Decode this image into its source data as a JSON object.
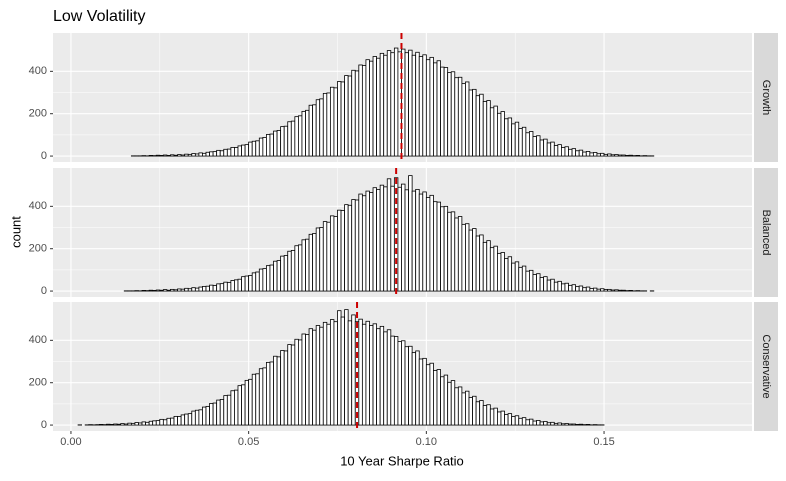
{
  "chart_data": {
    "type": "histogram",
    "title": "Low Volatility",
    "x_label": "10 Year Sharpe Ratio",
    "y_label": "count",
    "bins": [
      0.002,
      0.003,
      0.004,
      0.005,
      0.006,
      0.007,
      0.008,
      0.009,
      0.01,
      0.011,
      0.012,
      0.013,
      0.014,
      0.015,
      0.016,
      0.017,
      0.018,
      0.019,
      0.02,
      0.021,
      0.022,
      0.023,
      0.024,
      0.025,
      0.026,
      0.027,
      0.028,
      0.029,
      0.03,
      0.031,
      0.032,
      0.033,
      0.034,
      0.035,
      0.036,
      0.037,
      0.038,
      0.039,
      0.04,
      0.041,
      0.042,
      0.043,
      0.044,
      0.045,
      0.046,
      0.047,
      0.048,
      0.049,
      0.05,
      0.051,
      0.052,
      0.053,
      0.054,
      0.055,
      0.056,
      0.057,
      0.058,
      0.059,
      0.06,
      0.061,
      0.062,
      0.063,
      0.064,
      0.065,
      0.066,
      0.067,
      0.068,
      0.069,
      0.07,
      0.071,
      0.072,
      0.073,
      0.074,
      0.075,
      0.076,
      0.077,
      0.078,
      0.079,
      0.08,
      0.081,
      0.082,
      0.083,
      0.084,
      0.085,
      0.086,
      0.087,
      0.088,
      0.089,
      0.09,
      0.091,
      0.092,
      0.093,
      0.094,
      0.095,
      0.096,
      0.097,
      0.098,
      0.099,
      0.1,
      0.101,
      0.102,
      0.103,
      0.104,
      0.105,
      0.106,
      0.107,
      0.108,
      0.109,
      0.11,
      0.111,
      0.112,
      0.113,
      0.114,
      0.115,
      0.116,
      0.117,
      0.118,
      0.119,
      0.12,
      0.121,
      0.122,
      0.123,
      0.124,
      0.125,
      0.126,
      0.127,
      0.128,
      0.129,
      0.13,
      0.131,
      0.132,
      0.133,
      0.134,
      0.135,
      0.136,
      0.137,
      0.138,
      0.139,
      0.14,
      0.141,
      0.142,
      0.143,
      0.144,
      0.145,
      0.146,
      0.147,
      0.148,
      0.149,
      0.15,
      0.151,
      0.152,
      0.153,
      0.154,
      0.155,
      0.156,
      0.157,
      0.158,
      0.159,
      0.16,
      0.161,
      0.162,
      0.163,
      0.164,
      0.165,
      0.166,
      0.167,
      0.168,
      0.169,
      0.17,
      0.171,
      0.172,
      0.173,
      0.174,
      0.175,
      0.176,
      0.177,
      0.178,
      0.179,
      0.18,
      0.181,
      0.182,
      0.183
    ],
    "series": [
      {
        "name": "Growth",
        "color": "#ffffff",
        "mean": 0.093,
        "values": [
          0,
          0,
          0,
          0,
          0,
          0,
          0,
          0,
          0,
          0,
          0,
          0,
          0,
          0,
          0,
          1,
          1,
          1,
          2,
          1,
          3,
          2,
          4,
          3,
          5,
          3,
          6,
          4,
          7,
          5,
          9,
          8,
          12,
          10,
          15,
          13,
          18,
          20,
          21,
          27,
          25,
          32,
          33,
          41,
          40,
          48,
          52,
          54,
          66,
          70,
          72,
          85,
          88,
          102,
          104,
          118,
          121,
          139,
          141,
          162,
          165,
          186,
          190,
          211,
          216,
          240,
          242,
          266,
          270,
          296,
          298,
          325,
          322,
          352,
          350,
          380,
          378,
          405,
          402,
          430,
          428,
          455,
          448,
          470,
          462,
          485,
          476,
          498,
          488,
          510,
          492,
          505,
          488,
          500,
          476,
          490,
          470,
          478,
          455,
          466,
          440,
          450,
          420,
          418,
          395,
          398,
          370,
          372,
          342,
          350,
          312,
          315,
          285,
          292,
          258,
          262,
          228,
          236,
          202,
          210,
          176,
          180,
          152,
          160,
          130,
          136,
          110,
          116,
          92,
          96,
          76,
          80,
          62,
          66,
          50,
          54,
          40,
          44,
          32,
          35,
          25,
          28,
          19,
          22,
          15,
          17,
          11,
          13,
          8,
          10,
          6,
          7,
          5,
          5,
          3,
          4,
          2,
          3,
          1,
          2,
          1,
          1,
          0,
          0,
          0,
          0,
          0,
          0,
          0,
          0,
          0,
          0,
          0,
          0,
          0,
          0,
          0,
          0,
          0,
          0,
          0
        ]
      },
      {
        "name": "Balanced",
        "color": "#ffffff",
        "mean": 0.0915,
        "values": [
          0,
          0,
          0,
          0,
          0,
          0,
          0,
          0,
          0,
          0,
          0,
          0,
          0,
          1,
          1,
          1,
          2,
          1,
          3,
          2,
          4,
          3,
          5,
          4,
          7,
          4,
          8,
          6,
          10,
          9,
          13,
          11,
          16,
          14,
          19,
          22,
          23,
          28,
          26,
          34,
          35,
          42,
          41,
          50,
          53,
          56,
          68,
          71,
          74,
          86,
          90,
          104,
          106,
          120,
          123,
          141,
          144,
          165,
          168,
          188,
          192,
          214,
          218,
          242,
          245,
          268,
          272,
          298,
          300,
          328,
          325,
          355,
          352,
          382,
          380,
          408,
          405,
          432,
          430,
          458,
          450,
          472,
          465,
          488,
          480,
          500,
          492,
          530,
          495,
          535,
          490,
          505,
          478,
          545,
          472,
          480,
          458,
          468,
          442,
          452,
          422,
          420,
          398,
          400,
          372,
          374,
          345,
          352,
          315,
          318,
          288,
          295,
          260,
          265,
          230,
          238,
          205,
          212,
          178,
          182,
          154,
          162,
          132,
          138,
          112,
          118,
          94,
          98,
          78,
          82,
          64,
          68,
          52,
          56,
          42,
          46,
          34,
          37,
          27,
          30,
          21,
          24,
          16,
          19,
          12,
          14,
          9,
          11,
          7,
          8,
          5,
          6,
          4,
          4,
          2,
          3,
          1,
          2,
          1,
          1,
          0,
          1,
          0,
          0,
          0,
          0,
          0,
          0,
          0,
          0,
          0,
          0,
          0,
          0,
          0,
          0,
          0,
          0,
          0,
          0,
          0
        ]
      },
      {
        "name": "Conservative",
        "color": "#ffffff",
        "mean": 0.0805,
        "values": [
          1,
          0,
          1,
          2,
          1,
          2,
          3,
          2,
          4,
          3,
          5,
          4,
          7,
          5,
          9,
          8,
          12,
          10,
          15,
          13,
          18,
          20,
          21,
          27,
          25,
          32,
          33,
          41,
          40,
          48,
          52,
          54,
          66,
          70,
          72,
          85,
          88,
          102,
          104,
          118,
          121,
          139,
          141,
          162,
          165,
          186,
          190,
          211,
          216,
          240,
          242,
          266,
          270,
          296,
          298,
          325,
          322,
          352,
          350,
          380,
          378,
          405,
          402,
          430,
          428,
          455,
          448,
          470,
          462,
          485,
          476,
          498,
          488,
          540,
          510,
          545,
          492,
          520,
          488,
          500,
          476,
          490,
          470,
          478,
          455,
          466,
          440,
          450,
          420,
          418,
          395,
          398,
          370,
          372,
          342,
          350,
          312,
          315,
          285,
          292,
          258,
          262,
          228,
          236,
          202,
          210,
          176,
          180,
          152,
          160,
          130,
          136,
          110,
          116,
          92,
          96,
          76,
          80,
          62,
          66,
          50,
          54,
          40,
          44,
          32,
          35,
          25,
          28,
          19,
          22,
          15,
          17,
          11,
          13,
          8,
          10,
          6,
          7,
          5,
          5,
          3,
          4,
          2,
          3,
          1,
          2,
          1,
          1,
          0,
          0,
          0,
          0,
          0,
          0,
          0,
          0,
          0,
          0,
          0,
          0,
          0,
          0,
          0,
          0,
          0,
          0,
          0,
          0,
          0,
          0,
          0,
          0,
          0,
          0,
          0,
          0,
          0,
          0,
          0
        ]
      }
    ],
    "mean_color": "#cc0000",
    "xlim": [
      -0.00505,
      0.19163
    ],
    "ylim": [
      -28,
      581
    ],
    "xticks": [
      {
        "value": 0,
        "label": "0.00"
      },
      {
        "value": 0.05,
        "label": "0.05"
      },
      {
        "value": 0.1,
        "label": "0.10"
      },
      {
        "value": 0.15,
        "label": "0.15"
      }
    ],
    "yticks": [
      0,
      200,
      400
    ],
    "grid": true
  }
}
